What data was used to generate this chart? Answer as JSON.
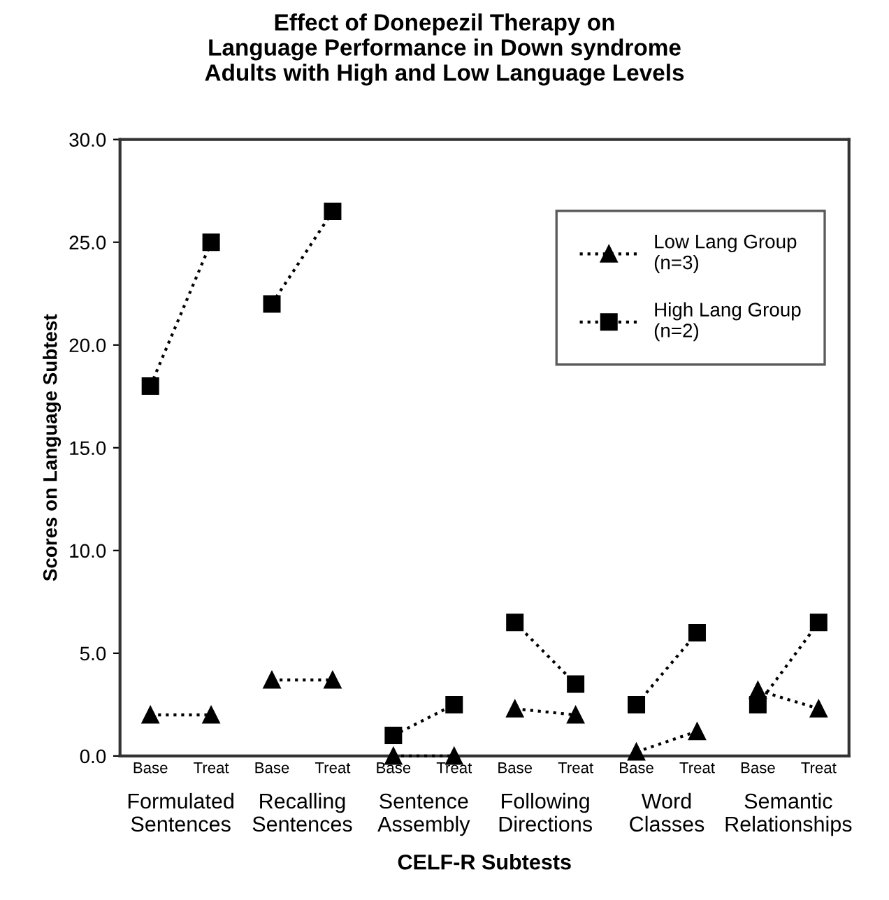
{
  "chart_data": {
    "type": "line",
    "title": "Effect of Donepezil Therapy on\nLanguage Performance in Down syndrome\nAdults with High and Low Language Levels",
    "xlabel": "CELF-R Subtests",
    "ylabel": "Scores on Language Subtest",
    "categories": [
      "Base",
      "Treat",
      "Base",
      "Treat",
      "Base",
      "Treat",
      "Base",
      "Treat",
      "Base",
      "Treat",
      "Base",
      "Treat"
    ],
    "annotations": [
      "Formulated\nSentences",
      "Recalling\nSentences",
      "Sentence\nAssembly",
      "Following\nDirections",
      "Word\nClasses",
      "Semantic\nRelationships"
    ],
    "ylim": [
      0,
      30
    ],
    "yticks": [
      {
        "value": 0,
        "label": "0.0"
      },
      {
        "value": 5,
        "label": "5.0"
      },
      {
        "value": 10,
        "label": "10.0"
      },
      {
        "value": 15,
        "label": "15.0"
      },
      {
        "value": 20,
        "label": "20.0"
      },
      {
        "value": 25,
        "label": "25.0"
      },
      {
        "value": 30,
        "label": "30.0"
      }
    ],
    "grid": false,
    "legend": "top right",
    "line_style": "dotted",
    "series": [
      {
        "name": "Low Lang Group\n(n=3)",
        "color": "#000000",
        "marker": "triangle",
        "values": [
          2.0,
          2.0,
          null,
          null,
          null,
          null,
          null,
          null,
          null,
          null,
          null,
          null
        ]
      },
      {
        "color": "#000000",
        "marker": "triangle",
        "values": [
          null,
          null,
          3.7,
          3.7,
          null,
          null,
          null,
          null,
          null,
          null,
          null,
          null
        ]
      },
      {
        "color": "#000000",
        "marker": "triangle",
        "values": [
          null,
          null,
          null,
          null,
          0.0,
          0.0,
          null,
          null,
          null,
          null,
          null,
          null
        ]
      },
      {
        "color": "#000000",
        "marker": "triangle",
        "values": [
          null,
          null,
          null,
          null,
          null,
          null,
          2.3,
          2.0,
          null,
          null,
          null,
          null
        ]
      },
      {
        "color": "#000000",
        "marker": "triangle",
        "values": [
          null,
          null,
          null,
          null,
          null,
          null,
          null,
          null,
          0.2,
          1.2,
          null,
          null
        ]
      },
      {
        "color": "#000000",
        "marker": "triangle",
        "values": [
          null,
          null,
          null,
          null,
          null,
          null,
          null,
          null,
          null,
          null,
          3.2,
          2.3
        ]
      },
      {
        "name": "High Lang Group\n(n=2)",
        "color": "#000000",
        "marker": "square",
        "values": [
          18.0,
          25.0,
          null,
          null,
          null,
          null,
          null,
          null,
          null,
          null,
          null,
          null
        ]
      },
      {
        "color": "#000000",
        "marker": "square",
        "values": [
          null,
          null,
          22.0,
          26.5,
          null,
          null,
          null,
          null,
          null,
          null,
          null,
          null
        ]
      },
      {
        "color": "#000000",
        "marker": "square",
        "values": [
          null,
          null,
          null,
          null,
          1.0,
          2.5,
          null,
          null,
          null,
          null,
          null,
          null
        ]
      },
      {
        "color": "#000000",
        "marker": "square",
        "values": [
          null,
          null,
          null,
          null,
          null,
          null,
          6.5,
          3.5,
          null,
          null,
          null,
          null
        ]
      },
      {
        "color": "#000000",
        "marker": "square",
        "values": [
          null,
          null,
          null,
          null,
          null,
          null,
          null,
          null,
          2.5,
          6.0,
          null,
          null
        ]
      },
      {
        "color": "#000000",
        "marker": "square",
        "values": [
          null,
          null,
          null,
          null,
          null,
          null,
          null,
          null,
          null,
          null,
          2.5,
          6.5
        ]
      }
    ]
  }
}
